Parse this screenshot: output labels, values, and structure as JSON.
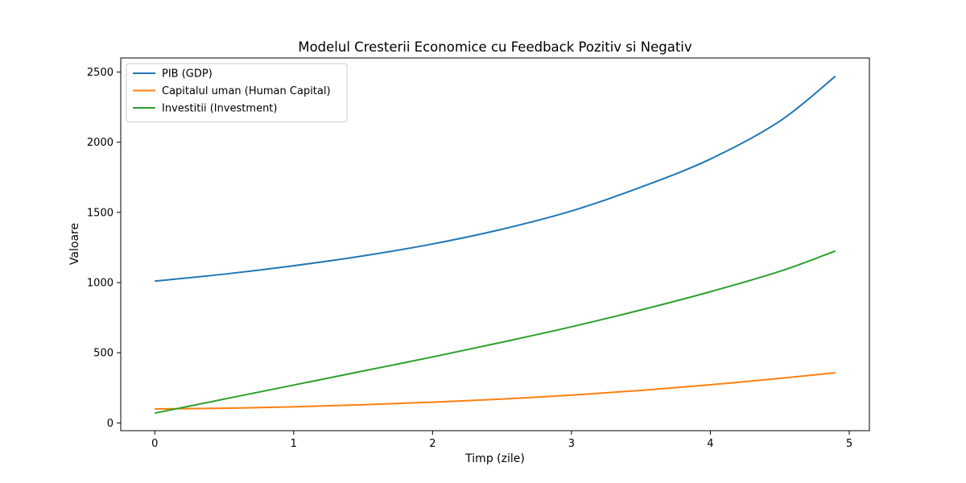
{
  "chart_data": {
    "type": "line",
    "title": "Modelul Cresterii Economice cu Feedback Pozitiv si Negativ",
    "xlabel": "Timp (zile)",
    "ylabel": "Valoare",
    "xlim": [
      -0.245,
      5.145
    ],
    "ylim": [
      -55,
      2600
    ],
    "xticks": [
      0,
      1,
      2,
      3,
      4,
      5
    ],
    "yticks": [
      0,
      500,
      1000,
      1500,
      2000,
      2500
    ],
    "grid": false,
    "legend_position": "top-left",
    "x": [
      0.0,
      0.5,
      1.0,
      1.5,
      2.0,
      2.5,
      3.0,
      3.5,
      4.0,
      4.5,
      4.9
    ],
    "series": [
      {
        "name": "PIB (GDP)",
        "color": "#1f77b4",
        "values": [
          1010,
          1060,
          1120,
          1190,
          1275,
          1380,
          1510,
          1680,
          1880,
          2150,
          2470
        ]
      },
      {
        "name": "Capitalul uman (Human Capital)",
        "color": "#ff7f0e",
        "values": [
          100,
          105,
          115,
          130,
          148,
          170,
          198,
          232,
          272,
          318,
          358
        ]
      },
      {
        "name": "Investitii (Investment)",
        "color": "#2ca02c",
        "values": [
          70,
          170,
          270,
          370,
          470,
          575,
          685,
          805,
          935,
          1080,
          1225
        ]
      }
    ]
  }
}
